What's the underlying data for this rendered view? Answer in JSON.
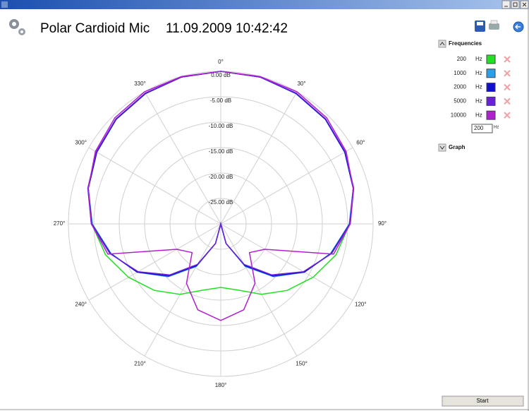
{
  "header": {
    "title": "Polar Cardioid Mic",
    "timestamp": "11.09.2009 10:42:42"
  },
  "panel": {
    "frequencies_label": "Frequencies",
    "unit": "Hz",
    "input_value": "200",
    "graph_label": "Graph"
  },
  "button": "Start",
  "chart_data": {
    "type": "polar",
    "theta": [
      0,
      15,
      30,
      45,
      60,
      75,
      90,
      105,
      120,
      135,
      150,
      165,
      180,
      195,
      210,
      225,
      240,
      255,
      270,
      285,
      300,
      315,
      330,
      345
    ],
    "rlim": [
      -30,
      0
    ],
    "rticks": [
      {
        "value": 0,
        "label": "0.00 dB"
      },
      {
        "value": -5,
        "label": "-5.00 dB"
      },
      {
        "value": -10,
        "label": "-10.00 dB"
      },
      {
        "value": -15,
        "label": "-15.00 dB"
      },
      {
        "value": -20,
        "label": "-20.00 dB"
      },
      {
        "value": -25,
        "label": "-25.00 dB"
      }
    ],
    "thetaticks": [
      {
        "value": 0,
        "label": "0°"
      },
      {
        "value": 30,
        "label": "30°"
      },
      {
        "value": 60,
        "label": "60°"
      },
      {
        "value": 90,
        "label": "90°"
      },
      {
        "value": 120,
        "label": "120°"
      },
      {
        "value": 150,
        "label": "150°"
      },
      {
        "value": 180,
        "label": "180°"
      },
      {
        "value": 210,
        "label": "210°"
      },
      {
        "value": 240,
        "label": "240°"
      },
      {
        "value": 270,
        "label": "270°"
      },
      {
        "value": 300,
        "label": "300°"
      },
      {
        "value": 330,
        "label": "330°"
      }
    ],
    "grid": true,
    "series": [
      {
        "name": "200",
        "color": "#22e022",
        "values": [
          0,
          -0.1,
          -0.4,
          -0.9,
          -1.8,
          -3.0,
          -4.6,
          -6.5,
          -9,
          -11.5,
          -14,
          -16.5,
          -17.5,
          -16.5,
          -14,
          -11.5,
          -9,
          -6.5,
          -4.6,
          -3.0,
          -1.8,
          -0.9,
          -0.4,
          -0.1
        ]
      },
      {
        "name": "1000",
        "color": "#2aa0e8",
        "values": [
          0,
          -0.1,
          -0.4,
          -0.9,
          -1.8,
          -3.0,
          -4.7,
          -7.6,
          -11,
          -15.3,
          -20.3,
          -26,
          -30,
          -26,
          -20.3,
          -15.3,
          -11,
          -7.6,
          -4.7,
          -3.0,
          -1.8,
          -0.9,
          -0.4,
          -0.1
        ]
      },
      {
        "name": "2000",
        "color": "#1010d0",
        "values": [
          0,
          -0.1,
          -0.4,
          -0.9,
          -1.8,
          -3.0,
          -4.6,
          -7.5,
          -11,
          -15.5,
          -20.5,
          -26,
          -30,
          -26,
          -20.5,
          -15.5,
          -11,
          -7.5,
          -4.6,
          -3.0,
          -1.8,
          -0.9,
          -0.4,
          -0.1
        ]
      },
      {
        "name": "5000",
        "color": "#6a20d8",
        "values": [
          0,
          -0.1,
          -0.3,
          -0.8,
          -1.7,
          -2.9,
          -4.5,
          -7.4,
          -11.2,
          -15.8,
          -20.8,
          -26,
          -30,
          -26,
          -20.8,
          -15.8,
          -11.2,
          -7.4,
          -4.5,
          -2.9,
          -1.7,
          -0.8,
          -0.3,
          -0.1
        ]
      },
      {
        "name": "10000",
        "color": "#b020d0",
        "values": [
          0,
          0,
          0,
          -0.5,
          -1.5,
          -3.0,
          -4.5,
          -7,
          -20,
          -22,
          -16.5,
          -12.5,
          -11,
          -12.5,
          -16.5,
          -22,
          -20,
          -7,
          -4.5,
          -3.0,
          -1.5,
          -0.5,
          0,
          0
        ]
      }
    ]
  }
}
